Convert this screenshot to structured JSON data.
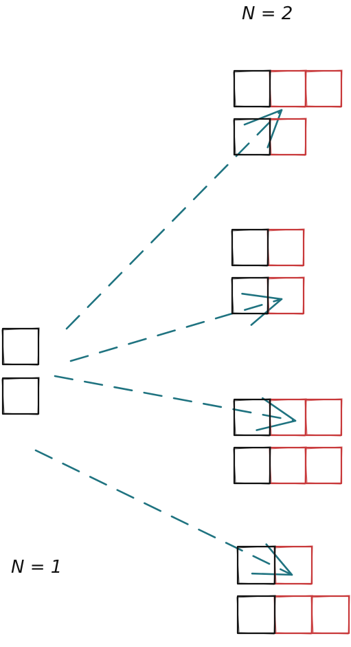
{
  "labels": {
    "top": "N = 2",
    "bottom": "N = 1"
  },
  "colors": {
    "base": "#111111",
    "added": "#c8383a",
    "arrow": "#1f7380",
    "background": "#ffffff"
  },
  "source": {
    "name": "n1-domino",
    "cells": [
      [
        0,
        0
      ],
      [
        0,
        1
      ]
    ]
  },
  "shapes": [
    {
      "name": "polyomino-1",
      "base": [
        [
          0,
          0
        ],
        [
          0,
          1
        ]
      ],
      "added": [
        [
          1,
          0
        ],
        [
          2,
          0
        ],
        [
          1,
          1
        ]
      ]
    },
    {
      "name": "polyomino-2",
      "base": [
        [
          0,
          0
        ],
        [
          0,
          1
        ]
      ],
      "added": [
        [
          1,
          0
        ],
        [
          1,
          1
        ]
      ]
    },
    {
      "name": "polyomino-3",
      "base": [
        [
          0,
          0
        ],
        [
          0,
          1
        ]
      ],
      "added": [
        [
          1,
          0
        ],
        [
          2,
          0
        ],
        [
          1,
          1
        ],
        [
          2,
          1
        ]
      ]
    },
    {
      "name": "polyomino-4",
      "base": [
        [
          0,
          0
        ],
        [
          0,
          1
        ]
      ],
      "added": [
        [
          1,
          0
        ],
        [
          1,
          1
        ],
        [
          2,
          1
        ]
      ]
    }
  ],
  "arrows": [
    {
      "from": "n1-domino",
      "to": "polyomino-1",
      "style": "dashed"
    },
    {
      "from": "n1-domino",
      "to": "polyomino-2",
      "style": "dashed"
    },
    {
      "from": "n1-domino",
      "to": "polyomino-3",
      "style": "dashed"
    },
    {
      "from": "n1-domino",
      "to": "polyomino-4",
      "style": "dashed"
    }
  ]
}
